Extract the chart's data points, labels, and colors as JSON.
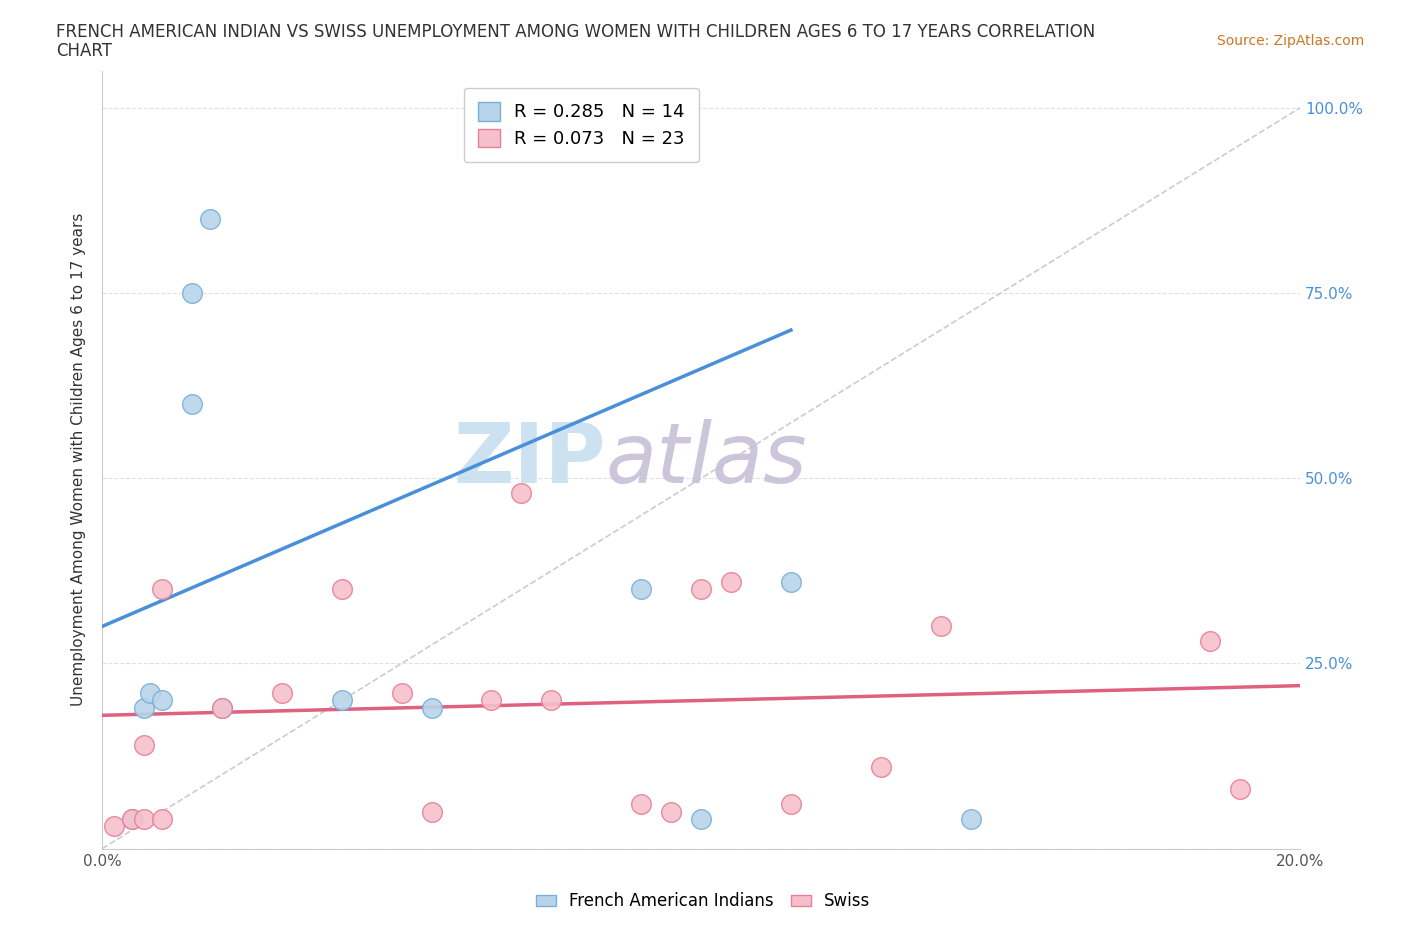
{
  "title_line1": "FRENCH AMERICAN INDIAN VS SWISS UNEMPLOYMENT AMONG WOMEN WITH CHILDREN AGES 6 TO 17 YEARS CORRELATION",
  "title_line2": "CHART",
  "source": "Source: ZipAtlas.com",
  "ylabel": "Unemployment Among Women with Children Ages 6 to 17 years",
  "xlim": [
    0.0,
    0.2
  ],
  "ylim": [
    0.0,
    1.05
  ],
  "xticks": [
    0.0,
    0.025,
    0.05,
    0.075,
    0.1,
    0.125,
    0.15,
    0.175,
    0.2
  ],
  "xticklabels": [
    "0.0%",
    "",
    "",
    "",
    "",
    "",
    "",
    "",
    "20.0%"
  ],
  "yticks": [
    0.0,
    0.25,
    0.5,
    0.75,
    1.0
  ],
  "right_yticklabels": [
    "",
    "25.0%",
    "50.0%",
    "75.0%",
    "100.0%"
  ],
  "blue_color": "#b8d4ea",
  "blue_edge": "#7ab0d8",
  "pink_color": "#f5c0cc",
  "pink_edge": "#e88098",
  "r_blue": 0.285,
  "n_blue": 14,
  "r_pink": 0.073,
  "n_pink": 23,
  "blue_line_x": [
    0.0,
    0.115
  ],
  "blue_line_y": [
    0.3,
    0.7
  ],
  "pink_line_x": [
    0.0,
    0.2
  ],
  "pink_line_y": [
    0.18,
    0.22
  ],
  "blue_scatter_x": [
    0.005,
    0.007,
    0.008,
    0.01,
    0.015,
    0.015,
    0.018,
    0.02,
    0.04,
    0.055,
    0.09,
    0.1,
    0.115,
    0.145
  ],
  "blue_scatter_y": [
    0.04,
    0.19,
    0.21,
    0.2,
    0.6,
    0.75,
    0.85,
    0.19,
    0.2,
    0.19,
    0.35,
    0.04,
    0.36,
    0.04
  ],
  "pink_scatter_x": [
    0.002,
    0.005,
    0.007,
    0.007,
    0.01,
    0.01,
    0.02,
    0.03,
    0.04,
    0.05,
    0.055,
    0.065,
    0.07,
    0.075,
    0.09,
    0.095,
    0.1,
    0.105,
    0.115,
    0.13,
    0.14,
    0.185,
    0.19
  ],
  "pink_scatter_y": [
    0.03,
    0.04,
    0.14,
    0.04,
    0.04,
    0.35,
    0.19,
    0.21,
    0.35,
    0.21,
    0.05,
    0.2,
    0.48,
    0.2,
    0.06,
    0.05,
    0.35,
    0.36,
    0.06,
    0.11,
    0.3,
    0.28,
    0.08
  ],
  "marker_size": 200,
  "background_color": "#ffffff",
  "grid_color": "#e0e0e0",
  "diag_color": "#cccccc",
  "blue_line_color": "#4a90d9",
  "pink_line_color": "#e06080",
  "watermark_zip_color": "#c8dff0",
  "watermark_atlas_color": "#c8c0d8"
}
